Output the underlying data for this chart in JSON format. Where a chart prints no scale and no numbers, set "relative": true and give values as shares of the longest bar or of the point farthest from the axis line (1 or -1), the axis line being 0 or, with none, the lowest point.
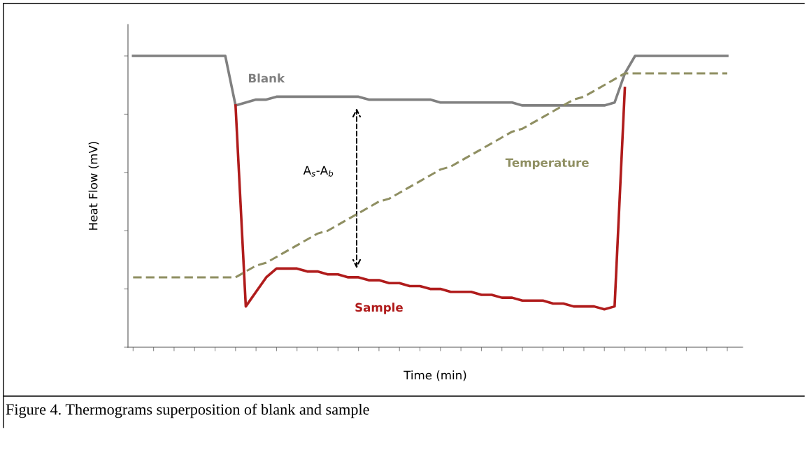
{
  "chart_data": {
    "type": "line",
    "relative": true,
    "xlabel": "Time (min)",
    "ylabel": "Heat Flow (mV)",
    "tick_labels": false,
    "grid": false,
    "legend": false,
    "marker": "none",
    "categories": [
      null,
      null,
      null,
      null,
      null,
      null,
      null,
      null,
      null,
      null,
      null,
      null,
      null,
      null,
      null,
      null,
      null,
      null,
      null,
      null,
      null,
      null,
      null,
      null,
      null,
      null,
      null,
      null,
      null,
      null,
      null,
      null,
      null,
      null,
      null,
      null,
      null,
      null,
      null,
      null,
      null,
      null,
      null,
      null,
      null,
      null,
      null,
      null,
      null,
      null,
      null,
      null,
      null,
      null,
      null,
      null,
      null,
      null,
      null,
      null
    ],
    "series": [
      {
        "name": "Blank",
        "color": "#808080",
        "line_style": "solid",
        "values": [
          1,
          1,
          1,
          1,
          1,
          1,
          1,
          1,
          1,
          1,
          0.83,
          0.84,
          0.85,
          0.85,
          0.86,
          0.86,
          0.86,
          0.86,
          0.86,
          0.86,
          0.86,
          0.86,
          0.86,
          0.85,
          0.85,
          0.85,
          0.85,
          0.85,
          0.85,
          0.85,
          0.84,
          0.84,
          0.84,
          0.84,
          0.84,
          0.84,
          0.84,
          0.84,
          0.83,
          0.83,
          0.83,
          0.83,
          0.83,
          0.83,
          0.83,
          0.83,
          0.83,
          0.84,
          0.94,
          1.0,
          1.0,
          1.0,
          1.0,
          1.0,
          1.0,
          1.0,
          1.0,
          1.0,
          1.0,
          null
        ]
      },
      {
        "name": "Sample",
        "color": "#b01c1c",
        "line_style": "solid",
        "values": [
          null,
          null,
          null,
          null,
          null,
          null,
          null,
          null,
          null,
          null,
          0.83,
          0.14,
          0.19,
          0.24,
          0.27,
          0.27,
          0.27,
          0.26,
          0.26,
          0.25,
          0.25,
          0.24,
          0.24,
          0.23,
          0.23,
          0.22,
          0.22,
          0.21,
          0.21,
          0.2,
          0.2,
          0.19,
          0.19,
          0.19,
          0.18,
          0.18,
          0.17,
          0.17,
          0.16,
          0.16,
          0.16,
          0.15,
          0.15,
          0.14,
          0.14,
          0.14,
          0.13,
          0.14,
          0.89,
          null,
          null,
          null,
          null,
          null,
          null,
          null,
          null,
          null,
          null,
          null
        ]
      },
      {
        "name": "Temperature",
        "color": "#8f8f62",
        "line_style": "dashed",
        "values": [
          0.24,
          0.24,
          0.24,
          0.24,
          0.24,
          0.24,
          0.24,
          0.24,
          0.24,
          0.24,
          0.24,
          0.26,
          0.28,
          0.29,
          0.31,
          0.33,
          0.35,
          0.37,
          0.39,
          0.4,
          0.42,
          0.44,
          0.46,
          0.48,
          0.5,
          0.51,
          0.53,
          0.55,
          0.57,
          0.59,
          0.61,
          0.62,
          0.64,
          0.66,
          0.68,
          0.7,
          0.72,
          0.74,
          0.75,
          0.77,
          0.79,
          0.81,
          0.83,
          0.85,
          0.86,
          0.88,
          0.9,
          0.92,
          0.94,
          0.94,
          0.94,
          0.94,
          0.94,
          0.94,
          0.94,
          0.94,
          0.94,
          0.94,
          0.94,
          null
        ]
      }
    ],
    "annotations": [
      "A$_{s}$-A$_{b}$",
      "Figure 4. Thermograms superposition of blank and sample"
    ]
  }
}
